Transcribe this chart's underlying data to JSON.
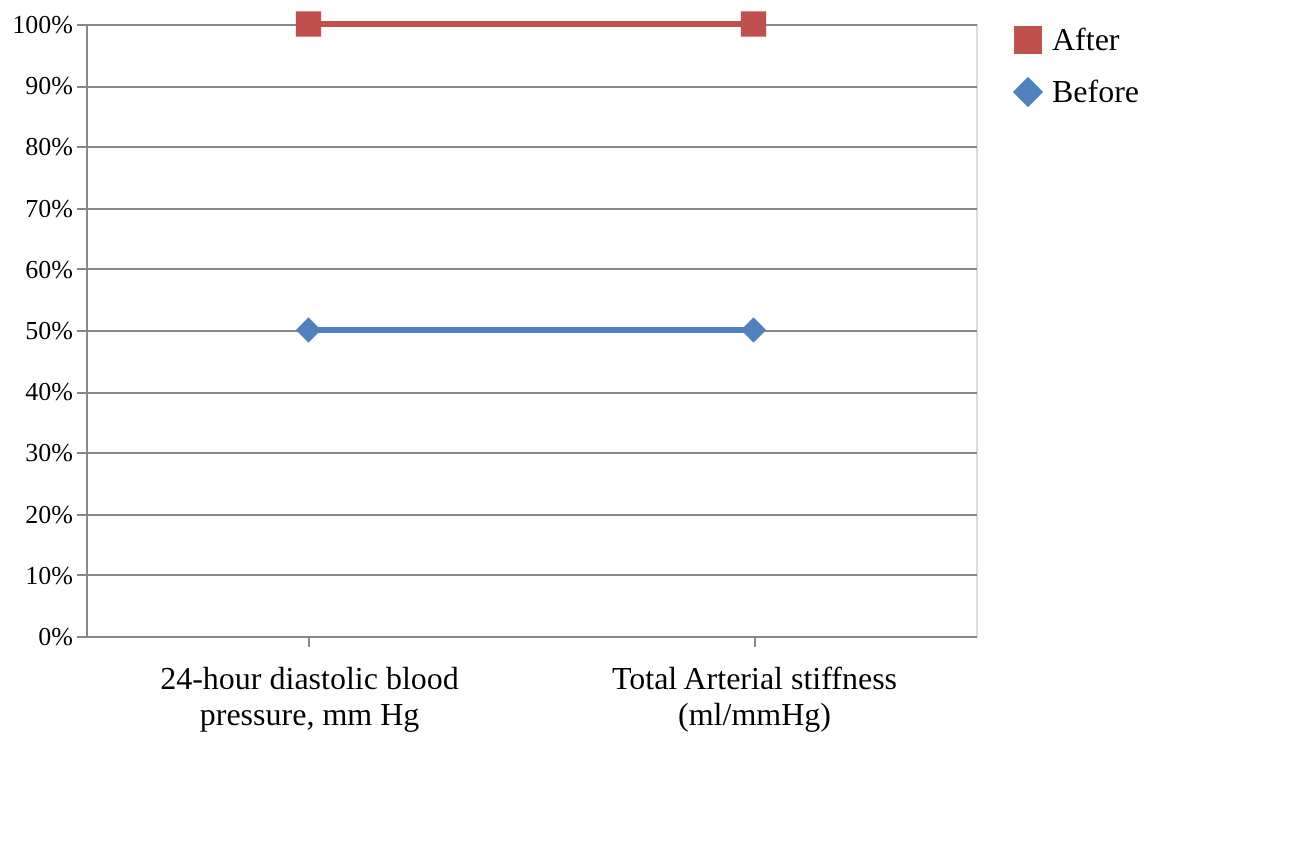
{
  "chart_data": {
    "type": "line",
    "categories": [
      "24-hour diastolic blood pressure, mm Hg",
      "Total Arterial stiffness (ml/mmHg)"
    ],
    "series": [
      {
        "name": "After",
        "color": "#c0504d",
        "values": [
          100,
          100
        ],
        "marker": "square"
      },
      {
        "name": "Before",
        "color": "#4f81bd",
        "values": [
          50,
          50
        ],
        "marker": "diamond"
      }
    ],
    "ylim": [
      0,
      100
    ],
    "yticks": [
      {
        "value": 0,
        "label": "0%"
      },
      {
        "value": 10,
        "label": "10%"
      },
      {
        "value": 20,
        "label": "20%"
      },
      {
        "value": 30,
        "label": "30%"
      },
      {
        "value": 40,
        "label": "40%"
      },
      {
        "value": 50,
        "label": "50%"
      },
      {
        "value": 60,
        "label": "60%"
      },
      {
        "value": 70,
        "label": "70%"
      },
      {
        "value": 80,
        "label": "80%"
      },
      {
        "value": 90,
        "label": "90%"
      },
      {
        "value": 100,
        "label": "100%"
      }
    ],
    "grid": "y",
    "legend": "right",
    "line_style": "solid"
  }
}
